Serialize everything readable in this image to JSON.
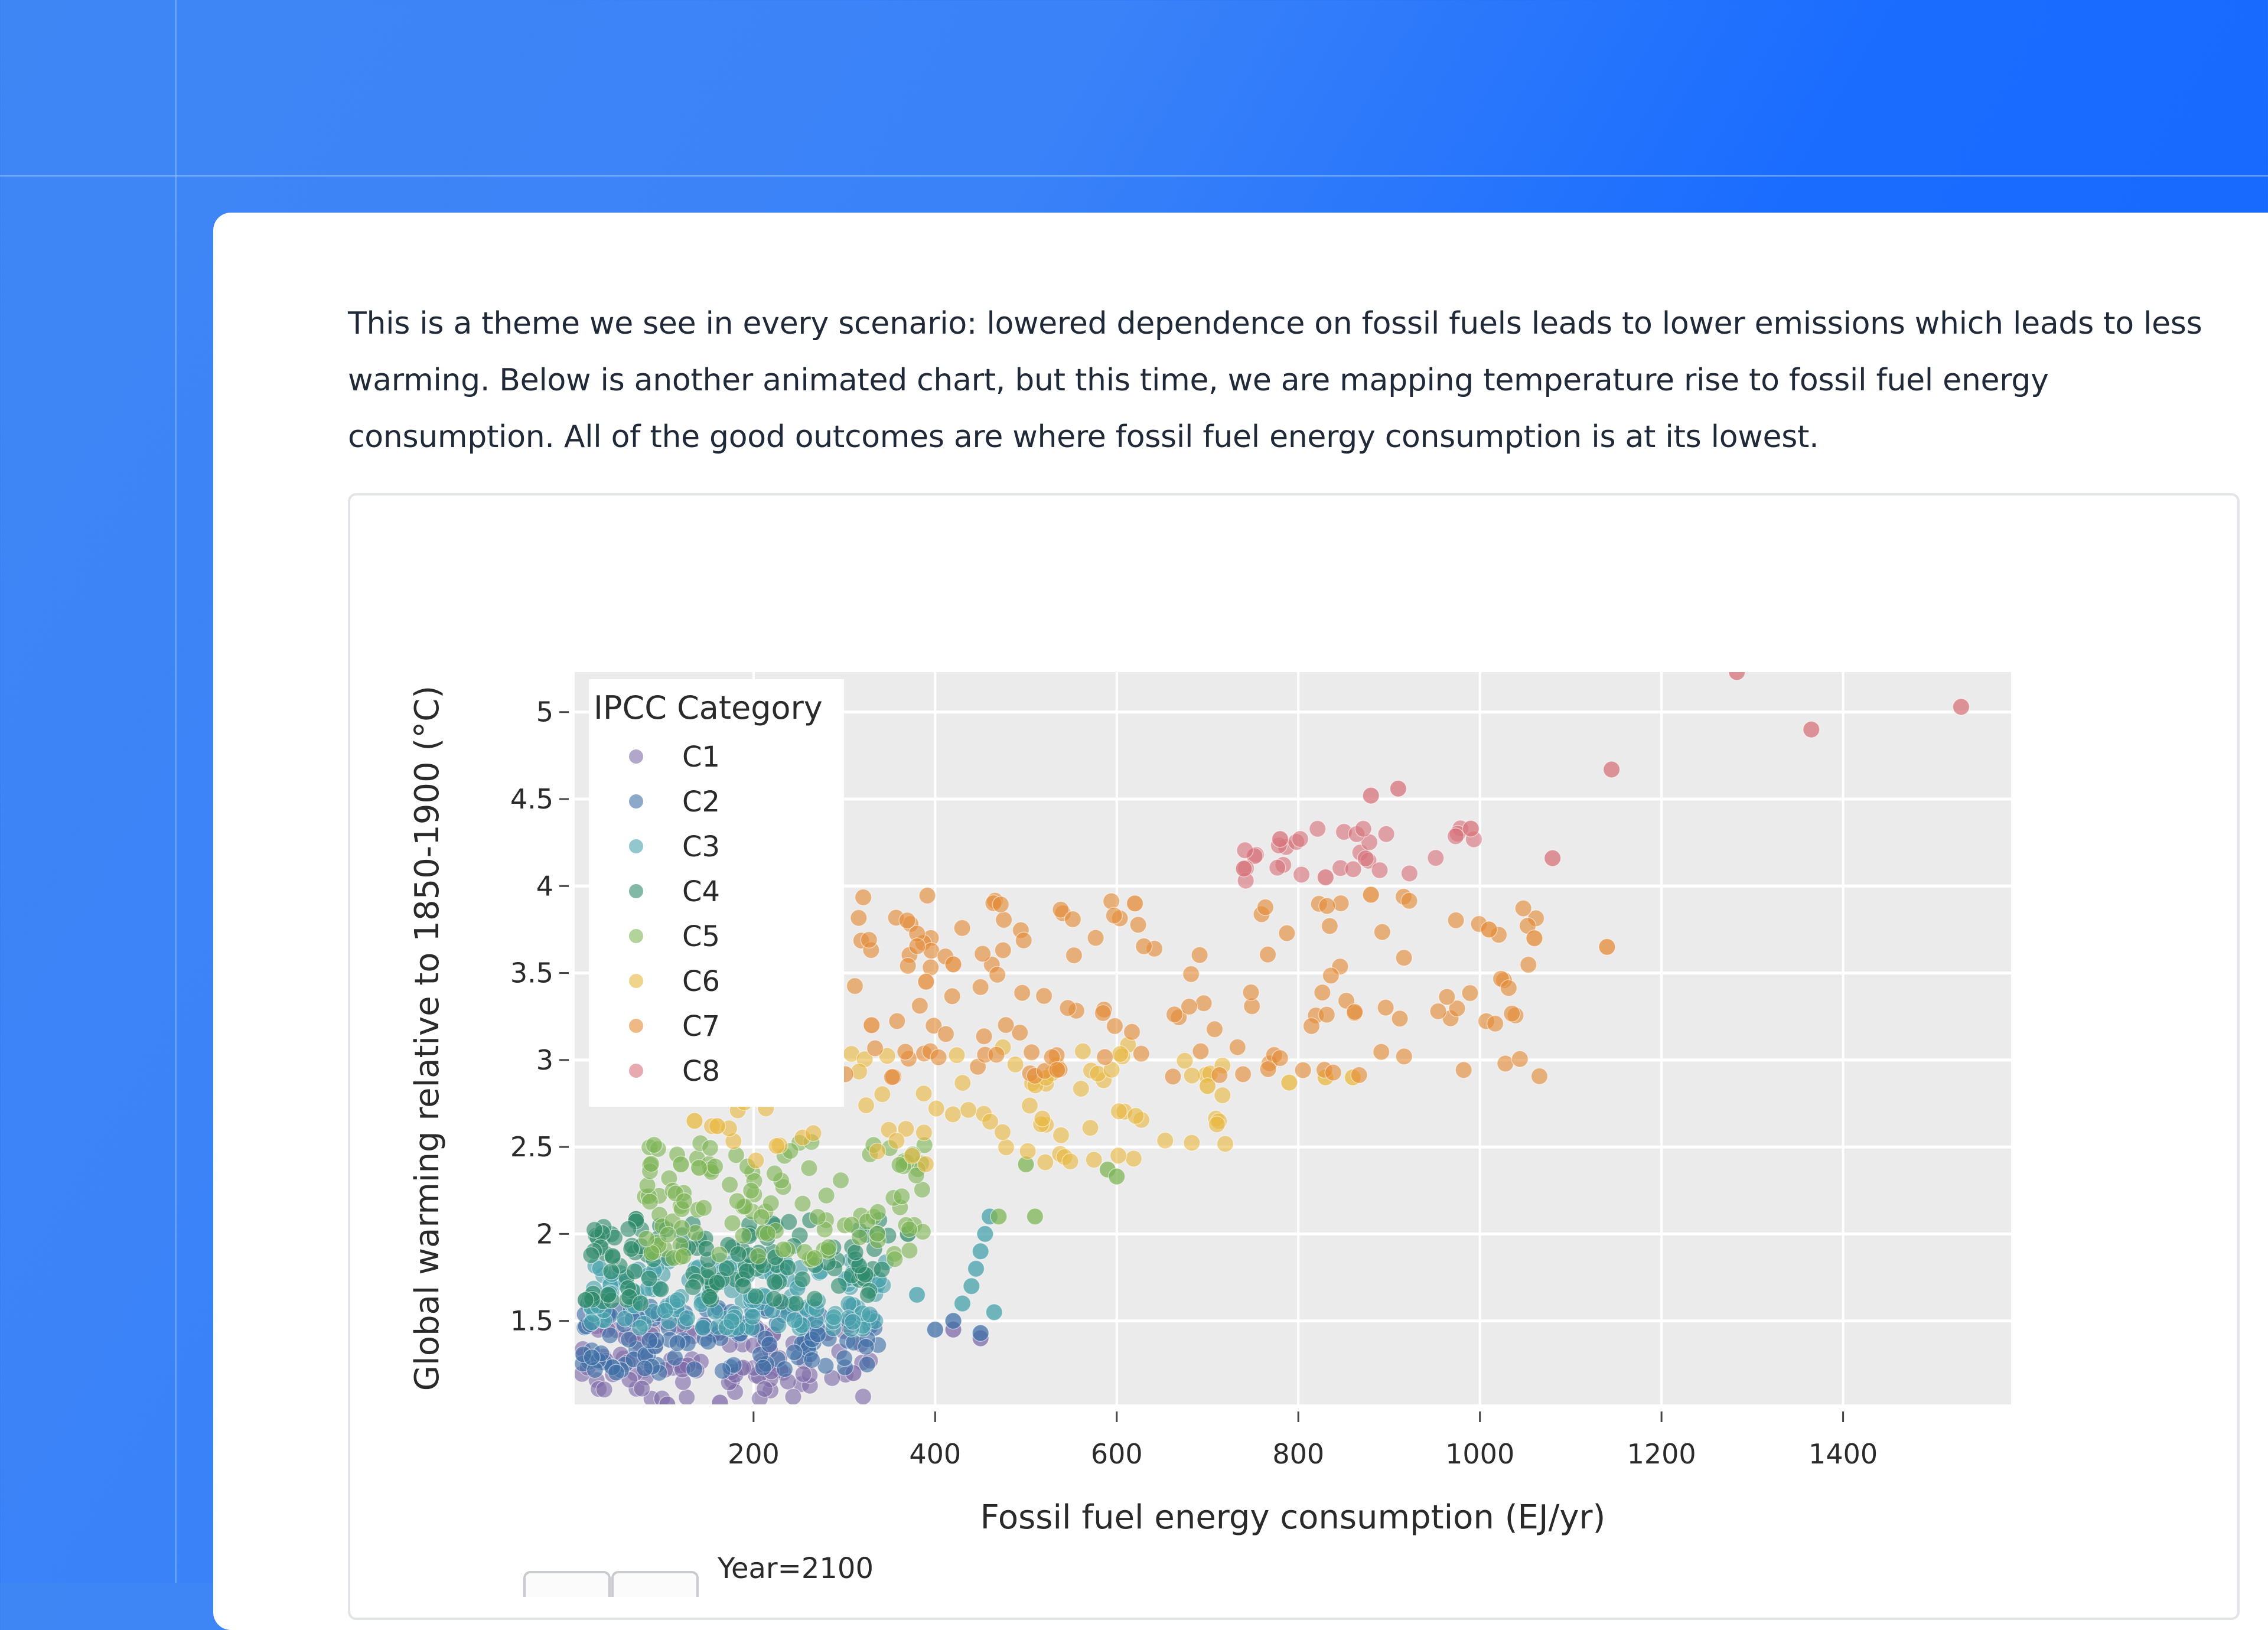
{
  "article": {
    "paragraph": "This is a theme we see in every scenario: lowered dependence on fossil fuels leads to lower emissions which leads to less warming. Below is another animated chart, but this time, we are mapping temperature rise to fossil fuel energy consumption. All of the good outcomes are where fossil fuel energy consumption is at its lowest."
  },
  "colors": {
    "page_bg_start": "#3f86f5",
    "page_bg_end": "#1565ff",
    "card_bg": "#ffffff",
    "plot_bg": "#ebebeb",
    "gridline": "#ffffff",
    "categories": {
      "C1": "#7e6aa8",
      "C2": "#3f6fa6",
      "C3": "#47a2ab",
      "C4": "#2f8a6a",
      "C5": "#7eb556",
      "C6": "#e8b840",
      "C7": "#e48b35",
      "C8": "#d7737a"
    }
  },
  "slider": {
    "label": "Year=2100",
    "play_button_icon": "play-icon",
    "pause_button_icon": "pause-icon"
  },
  "chart_data": {
    "type": "scatter",
    "title": "",
    "xlabel": "Fossil fuel energy consumption (EJ/yr)",
    "ylabel": "Global warming relative to 1850-1900 (°C)",
    "xlim": [
      3,
      1585
    ],
    "ylim": [
      1.02,
      5.23
    ],
    "x_ticks": [
      200,
      400,
      600,
      800,
      1000,
      1200,
      1400
    ],
    "y_ticks": [
      1.5,
      2,
      2.5,
      3,
      3.5,
      4,
      4.5,
      5
    ],
    "grid": true,
    "legend": {
      "title": "IPCC Category",
      "position": "top-left inside plot",
      "entries": [
        "C1",
        "C2",
        "C3",
        "C4",
        "C5",
        "C6",
        "C7",
        "C8"
      ]
    },
    "frame": "Year=2100",
    "series": [
      {
        "name": "C1",
        "clusters": [
          {
            "x": [
              10,
              330
            ],
            "y": [
              1.05,
              1.5
            ],
            "n": 110
          }
        ],
        "points": [
          [
            105,
            1.02
          ],
          [
            163,
            1.03
          ],
          [
            260,
            1.4
          ],
          [
            310,
            1.2
          ],
          [
            420,
            1.45
          ],
          [
            450,
            1.4
          ]
        ]
      },
      {
        "name": "C2",
        "clusters": [
          {
            "x": [
              10,
              340
            ],
            "y": [
              1.2,
              1.6
            ],
            "n": 120
          }
        ],
        "points": [
          [
            420,
            1.5
          ],
          [
            450,
            1.43
          ],
          [
            400,
            1.45
          ]
        ]
      },
      {
        "name": "C3",
        "clusters": [
          {
            "x": [
              20,
              350
            ],
            "y": [
              1.45,
              1.85
            ],
            "n": 160
          }
        ],
        "points": [
          [
            430,
            1.6
          ],
          [
            440,
            1.7
          ],
          [
            445,
            1.8
          ],
          [
            450,
            1.9
          ],
          [
            455,
            2.0
          ],
          [
            460,
            2.1
          ],
          [
            465,
            1.55
          ],
          [
            380,
            1.65
          ]
        ]
      },
      {
        "name": "C4",
        "clusters": [
          {
            "x": [
              20,
              350
            ],
            "y": [
              1.6,
              2.1
            ],
            "n": 130
          }
        ],
        "points": [
          [
            15,
            1.62
          ],
          [
            40,
            1.65
          ],
          [
            370,
            2.0
          ]
        ]
      },
      {
        "name": "C5",
        "clusters": [
          {
            "x": [
              80,
              400
            ],
            "y": [
              1.85,
              2.55
            ],
            "n": 120
          }
        ],
        "points": [
          [
            120,
            2.4
          ],
          [
            140,
            2.38
          ],
          [
            500,
            2.4
          ],
          [
            510,
            2.1
          ],
          [
            590,
            2.37
          ],
          [
            600,
            2.33
          ],
          [
            470,
            2.1
          ]
        ]
      },
      {
        "name": "C6",
        "clusters": [
          {
            "x": [
              150,
              720
            ],
            "y": [
              2.4,
              3.1
            ],
            "n": 90
          }
        ],
        "points": [
          [
            135,
            2.65
          ],
          [
            160,
            2.62
          ],
          [
            700,
            2.85
          ],
          [
            790,
            2.87
          ],
          [
            830,
            2.9
          ],
          [
            860,
            2.9
          ]
        ]
      },
      {
        "name": "C7",
        "clusters": [
          {
            "x": [
              300,
              1080
            ],
            "y": [
              2.9,
              3.95
            ],
            "n": 150
          }
        ],
        "points": [
          [
            330,
            3.2
          ],
          [
            390,
            3.45
          ],
          [
            420,
            3.55
          ],
          [
            620,
            3.9
          ],
          [
            1140,
            3.65
          ],
          [
            1060,
            3.7
          ],
          [
            1010,
            3.75
          ],
          [
            880,
            3.95
          ]
        ]
      },
      {
        "name": "C8",
        "clusters": [
          {
            "x": [
              740,
              1000
            ],
            "y": [
              4.0,
              4.35
            ],
            "n": 30
          }
        ],
        "points": [
          [
            740,
            4.1
          ],
          [
            780,
            4.27
          ],
          [
            830,
            4.05
          ],
          [
            880,
            4.52
          ],
          [
            910,
            4.56
          ],
          [
            990,
            4.33
          ],
          [
            1080,
            4.16
          ],
          [
            1145,
            4.67
          ],
          [
            1283,
            5.23
          ],
          [
            1365,
            4.9
          ],
          [
            1530,
            5.03
          ]
        ]
      }
    ]
  }
}
